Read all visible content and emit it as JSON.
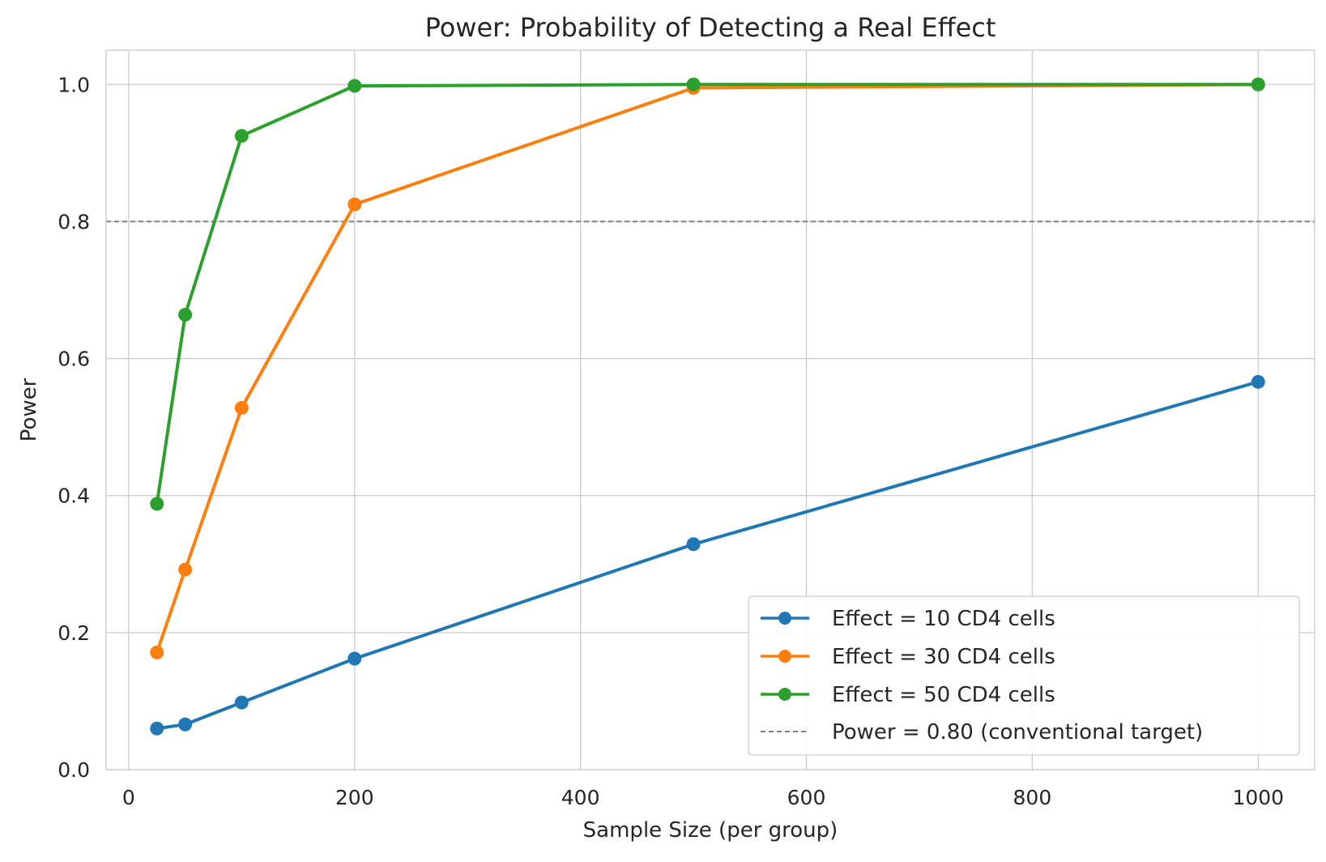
{
  "chart_data": {
    "type": "line",
    "title": "Power: Probability of Detecting a Real Effect",
    "xlabel": "Sample Size (per group)",
    "ylabel": "Power",
    "xlim": [
      -20,
      1050
    ],
    "ylim": [
      0,
      1.05
    ],
    "xticks": [
      0,
      200,
      400,
      600,
      800,
      1000
    ],
    "yticks": [
      0.0,
      0.2,
      0.4,
      0.6,
      0.8,
      1.0
    ],
    "xtick_labels": [
      "0",
      "200",
      "400",
      "600",
      "800",
      "1000"
    ],
    "ytick_labels": [
      "0.0",
      "0.2",
      "0.4",
      "0.6",
      "0.8",
      "1.0"
    ],
    "grid": true,
    "legend_position": "lower-right",
    "x": [
      25,
      50,
      100,
      200,
      500,
      1000
    ],
    "series": [
      {
        "name": "Effect = 10 CD4 cells",
        "color": "#1f77b4",
        "values": [
          0.06,
          0.066,
          0.098,
          0.162,
          0.329,
          0.566
        ]
      },
      {
        "name": "Effect = 30 CD4 cells",
        "color": "#ff7f0e",
        "values": [
          0.171,
          0.292,
          0.528,
          0.825,
          0.995,
          1.0
        ]
      },
      {
        "name": "Effect = 50 CD4 cells",
        "color": "#2ca02c",
        "values": [
          0.388,
          0.664,
          0.925,
          0.998,
          1.0,
          1.0
        ]
      }
    ],
    "reference_line": {
      "name": "Power = 0.80 (conventional target)",
      "value": 0.8,
      "color": "#808080"
    }
  }
}
